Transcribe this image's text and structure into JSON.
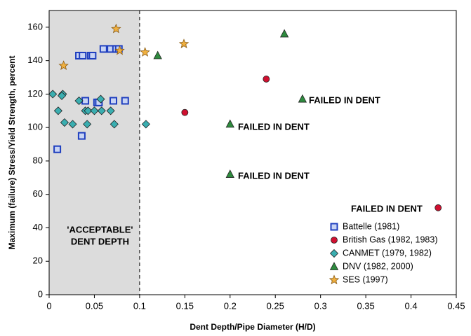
{
  "chart_data": {
    "type": "scatter",
    "x_label": "Dent Depth/Pipe Diameter (H/D)",
    "y_label": "Maximum (failure) Stress/Yield Strength, percent",
    "xlim": [
      0,
      0.45
    ],
    "ylim": [
      0,
      170
    ],
    "xticks": [
      0,
      0.05,
      0.1,
      0.15,
      0.2,
      0.25,
      0.3,
      0.35,
      0.4,
      0.45
    ],
    "yticks": [
      0,
      20,
      40,
      60,
      80,
      100,
      120,
      140,
      160
    ],
    "shaded_region": [
      0,
      0.1
    ],
    "shaded_label": [
      "'ACCEPTABLE'",
      "DENT DEPTH"
    ],
    "annotations": [
      "FAILED IN DENT",
      "FAILED IN DENT",
      "FAILED IN DENT",
      "FAILED IN DENT"
    ],
    "legend_position": "lower right",
    "series": [
      {
        "name": "Battelle (1981)",
        "color": "#1f3fbf",
        "marker": "square",
        "x": [
          0.009,
          0.036,
          0.033,
          0.037,
          0.046,
          0.048,
          0.06,
          0.068,
          0.074,
          0.077,
          0.04,
          0.053,
          0.055,
          0.071,
          0.084
        ],
        "values": [
          87,
          95,
          143,
          143,
          143,
          143,
          147,
          147,
          147,
          147,
          116,
          115,
          115,
          116,
          116
        ]
      },
      {
        "name": "British Gas (1982, 1983)",
        "color": "#d01030",
        "marker": "circle",
        "x": [
          0.15,
          0.24,
          0.43
        ],
        "values": [
          109,
          129,
          52
        ]
      },
      {
        "name": "CANMET (1979, 1982)",
        "color": "#3aaeb0",
        "marker": "diamond",
        "x": [
          0.004,
          0.015,
          0.01,
          0.017,
          0.026,
          0.033,
          0.04,
          0.042,
          0.043,
          0.05,
          0.057,
          0.058,
          0.068,
          0.072,
          0.107,
          0.014
        ],
        "values": [
          120,
          120,
          110,
          103,
          102,
          116,
          110,
          102,
          110,
          110,
          117,
          110,
          110,
          102,
          102,
          119
        ]
      },
      {
        "name": "DNV (1982, 2000)",
        "color": "#2e8b3e",
        "marker": "triangle",
        "x": [
          0.12,
          0.2,
          0.2,
          0.26,
          0.28
        ],
        "values": [
          143,
          102,
          72,
          156,
          117
        ]
      },
      {
        "name": "SES (1997)",
        "color": "#f0b040",
        "marker": "star",
        "x": [
          0.016,
          0.074,
          0.078,
          0.106,
          0.149
        ],
        "values": [
          137,
          159,
          146,
          145,
          150
        ]
      }
    ]
  }
}
